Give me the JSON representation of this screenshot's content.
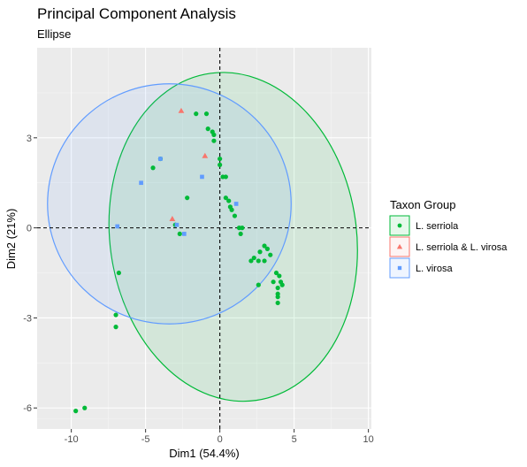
{
  "chart_data": {
    "type": "scatter",
    "title": "Principal Component Analysis",
    "subtitle": "Ellipse",
    "xlabel": "Dim1 (54.4%)",
    "ylabel": "Dim2 (21%)",
    "xlim": [
      -12.3,
      10.2
    ],
    "ylim": [
      -6.7,
      6.0
    ],
    "x_ticks": [
      -10,
      -5,
      0,
      5,
      10
    ],
    "y_ticks": [
      -6,
      -3,
      0,
      3
    ],
    "x_tick_labels": [
      "-10",
      "-5",
      "0",
      "5",
      "10"
    ],
    "y_tick_labels": [
      "-6",
      "-3",
      "0",
      "3"
    ],
    "grid": true,
    "reference_lines": {
      "x": 0,
      "y": 0,
      "style": "dashed"
    },
    "legend": {
      "title": "Taxon Group",
      "position": "right",
      "entries": [
        "L. serriola",
        "L. serriola & L. virosa",
        "L. virosa"
      ]
    },
    "series": [
      {
        "name": "L. serriola",
        "color": "#00ba38",
        "marker": "circle",
        "ellipse": {
          "cx": 0.9,
          "cy": -0.3,
          "rx": 8.3,
          "ry": 5.5,
          "angle_deg": 8
        },
        "points": [
          [
            -9.7,
            -6.1
          ],
          [
            -9.1,
            -6.0
          ],
          [
            -7.0,
            -2.9
          ],
          [
            -7.0,
            -3.3
          ],
          [
            -6.8,
            -1.5
          ],
          [
            -4.5,
            2.0
          ],
          [
            -4.0,
            2.3
          ],
          [
            -3.0,
            0.1
          ],
          [
            -2.7,
            -0.2
          ],
          [
            -2.2,
            1.0
          ],
          [
            -1.6,
            3.8
          ],
          [
            -0.9,
            3.8
          ],
          [
            -0.8,
            3.3
          ],
          [
            -0.5,
            3.2
          ],
          [
            -0.4,
            3.1
          ],
          [
            -0.4,
            2.9
          ],
          [
            0.0,
            2.3
          ],
          [
            0.0,
            2.1
          ],
          [
            0.2,
            1.7
          ],
          [
            0.4,
            1.7
          ],
          [
            0.4,
            1.0
          ],
          [
            0.6,
            0.9
          ],
          [
            0.7,
            0.7
          ],
          [
            0.8,
            0.6
          ],
          [
            1.0,
            0.4
          ],
          [
            1.3,
            0.0
          ],
          [
            1.5,
            0.0
          ],
          [
            1.4,
            -0.2
          ],
          [
            2.1,
            -1.1
          ],
          [
            2.3,
            -1.0
          ],
          [
            2.6,
            -1.1
          ],
          [
            2.7,
            -0.8
          ],
          [
            3.0,
            -0.6
          ],
          [
            3.0,
            -1.1
          ],
          [
            3.2,
            -0.7
          ],
          [
            3.4,
            -0.9
          ],
          [
            3.8,
            -1.5
          ],
          [
            4.0,
            -1.6
          ],
          [
            3.6,
            -1.8
          ],
          [
            3.9,
            -2.0
          ],
          [
            4.2,
            -1.9
          ],
          [
            3.9,
            -2.2
          ],
          [
            4.1,
            -1.8
          ],
          [
            3.9,
            -2.5
          ],
          [
            3.9,
            -2.3
          ],
          [
            2.6,
            -1.9
          ]
        ]
      },
      {
        "name": "L. serriola & L. virosa",
        "color": "#f8766d",
        "marker": "triangle",
        "ellipse": null,
        "points": [
          [
            -2.6,
            3.9
          ],
          [
            -1.0,
            2.4
          ],
          [
            -3.2,
            0.3
          ]
        ]
      },
      {
        "name": "L. virosa",
        "color": "#619cff",
        "marker": "square",
        "ellipse": {
          "cx": -3.4,
          "cy": 0.8,
          "rx": 8.2,
          "ry": 4.0,
          "angle_deg": 0
        },
        "points": [
          [
            -5.3,
            1.5
          ],
          [
            -4.0,
            2.3
          ],
          [
            -6.9,
            0.05
          ],
          [
            -2.9,
            0.1
          ],
          [
            -2.4,
            -0.2
          ],
          [
            -1.2,
            1.7
          ],
          [
            1.1,
            0.8
          ]
        ]
      }
    ]
  }
}
